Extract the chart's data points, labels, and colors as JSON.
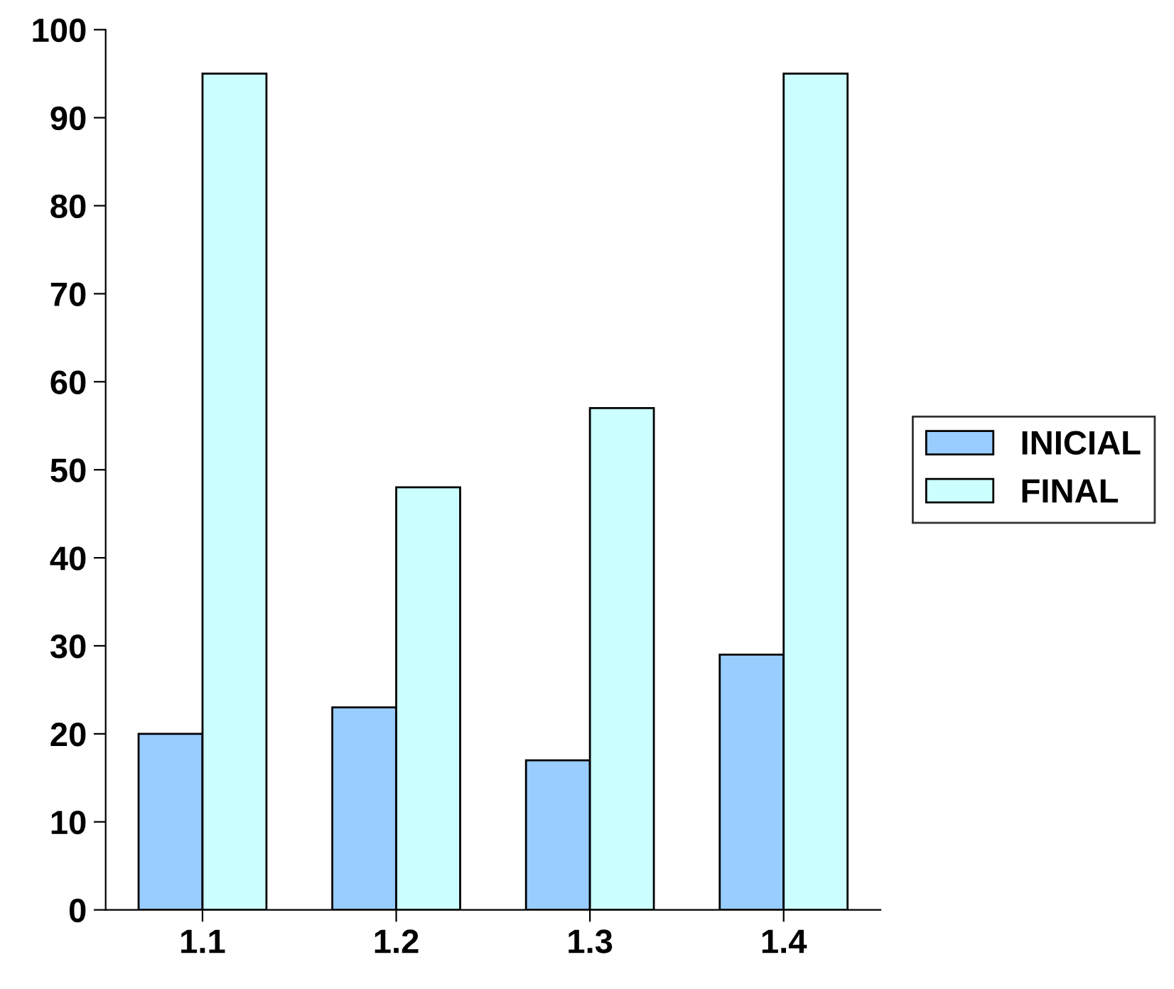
{
  "chart_data": {
    "type": "bar",
    "categories": [
      "1.1",
      "1.2",
      "1.3",
      "1.4"
    ],
    "series": [
      {
        "name": "INICIAL",
        "color": "#99ccff",
        "values": [
          20,
          23,
          17,
          29
        ]
      },
      {
        "name": "FINAL",
        "color": "#ccffff",
        "values": [
          95,
          48,
          57,
          95
        ]
      }
    ],
    "ylim": [
      0,
      100
    ],
    "yticks": [
      0,
      10,
      20,
      30,
      40,
      50,
      60,
      70,
      80,
      90,
      100
    ],
    "grid": false,
    "legend": "right"
  }
}
